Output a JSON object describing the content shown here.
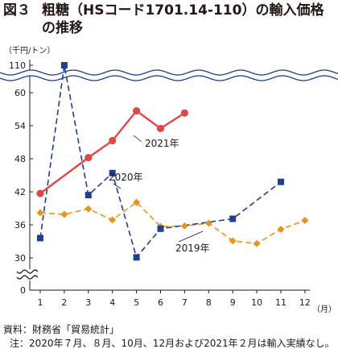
{
  "figure": {
    "label": "図３",
    "title": "粗糖（HSコード1701.14-110）の輸入価格の推移"
  },
  "chart_data": {
    "type": "line",
    "ylabel": "（千円/トン）",
    "xlabel": "（月）",
    "x": [
      1,
      2,
      3,
      4,
      5,
      6,
      7,
      8,
      9,
      10,
      11,
      12
    ],
    "y_ticks_lower": [
      30,
      36,
      42,
      48,
      54,
      60
    ],
    "y_tick_top": 110,
    "y_tick_bottom": 0,
    "ylim": [
      30,
      60
    ],
    "y_break": true,
    "grid": false,
    "series": [
      {
        "name": "2021年",
        "color": "#e04848",
        "style": "solid",
        "marker": "circle",
        "values": [
          41.7,
          null,
          48.2,
          51.3,
          56.7,
          53.5,
          56.3,
          null,
          null,
          null,
          null,
          null
        ]
      },
      {
        "name": "2020年",
        "color": "#1f3f8f",
        "style": "dashed",
        "marker": "square",
        "values": [
          33.6,
          110,
          41.4,
          45.4,
          30.1,
          35.3,
          null,
          null,
          37.1,
          null,
          43.8,
          null
        ]
      },
      {
        "name": "2019年",
        "color": "#e8941a",
        "style": "dashed",
        "marker": "diamond",
        "values": [
          38.2,
          37.9,
          38.9,
          36.9,
          40.1,
          35.7,
          35.8,
          36.3,
          33.1,
          32.6,
          35.2,
          36.8
        ]
      }
    ]
  },
  "footer": {
    "source": "資料：財務省「貿易統計」",
    "note": "注：2020年７月、８月、10月、12月および2021年２月は輸入実績なし。"
  }
}
